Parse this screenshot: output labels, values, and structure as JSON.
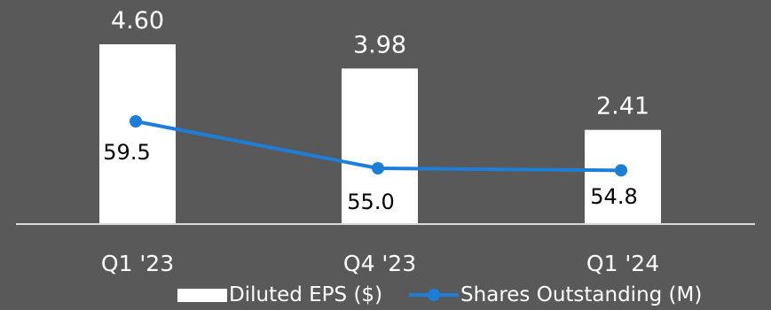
{
  "chart_data": {
    "type": "bar",
    "categories": [
      "Q1 '23",
      "Q4 '23",
      "Q1 '24"
    ],
    "series": [
      {
        "name": "Diluted EPS ($)",
        "type": "bar",
        "values": [
          4.6,
          3.98,
          2.41
        ],
        "labels": [
          "4.60",
          "3.98",
          "2.41"
        ]
      },
      {
        "name": "Shares Outstanding (M)",
        "type": "line",
        "values": [
          59.5,
          55.0,
          54.8
        ],
        "labels": [
          "59.5",
          "55.0",
          "54.8"
        ]
      }
    ],
    "colors": {
      "background": "#595959",
      "bar": "#ffffff",
      "line": "#1c7ed6",
      "text": "#ffffff",
      "axis": "#d9d9d9"
    },
    "legend_position": "bottom-center",
    "grid": false
  }
}
